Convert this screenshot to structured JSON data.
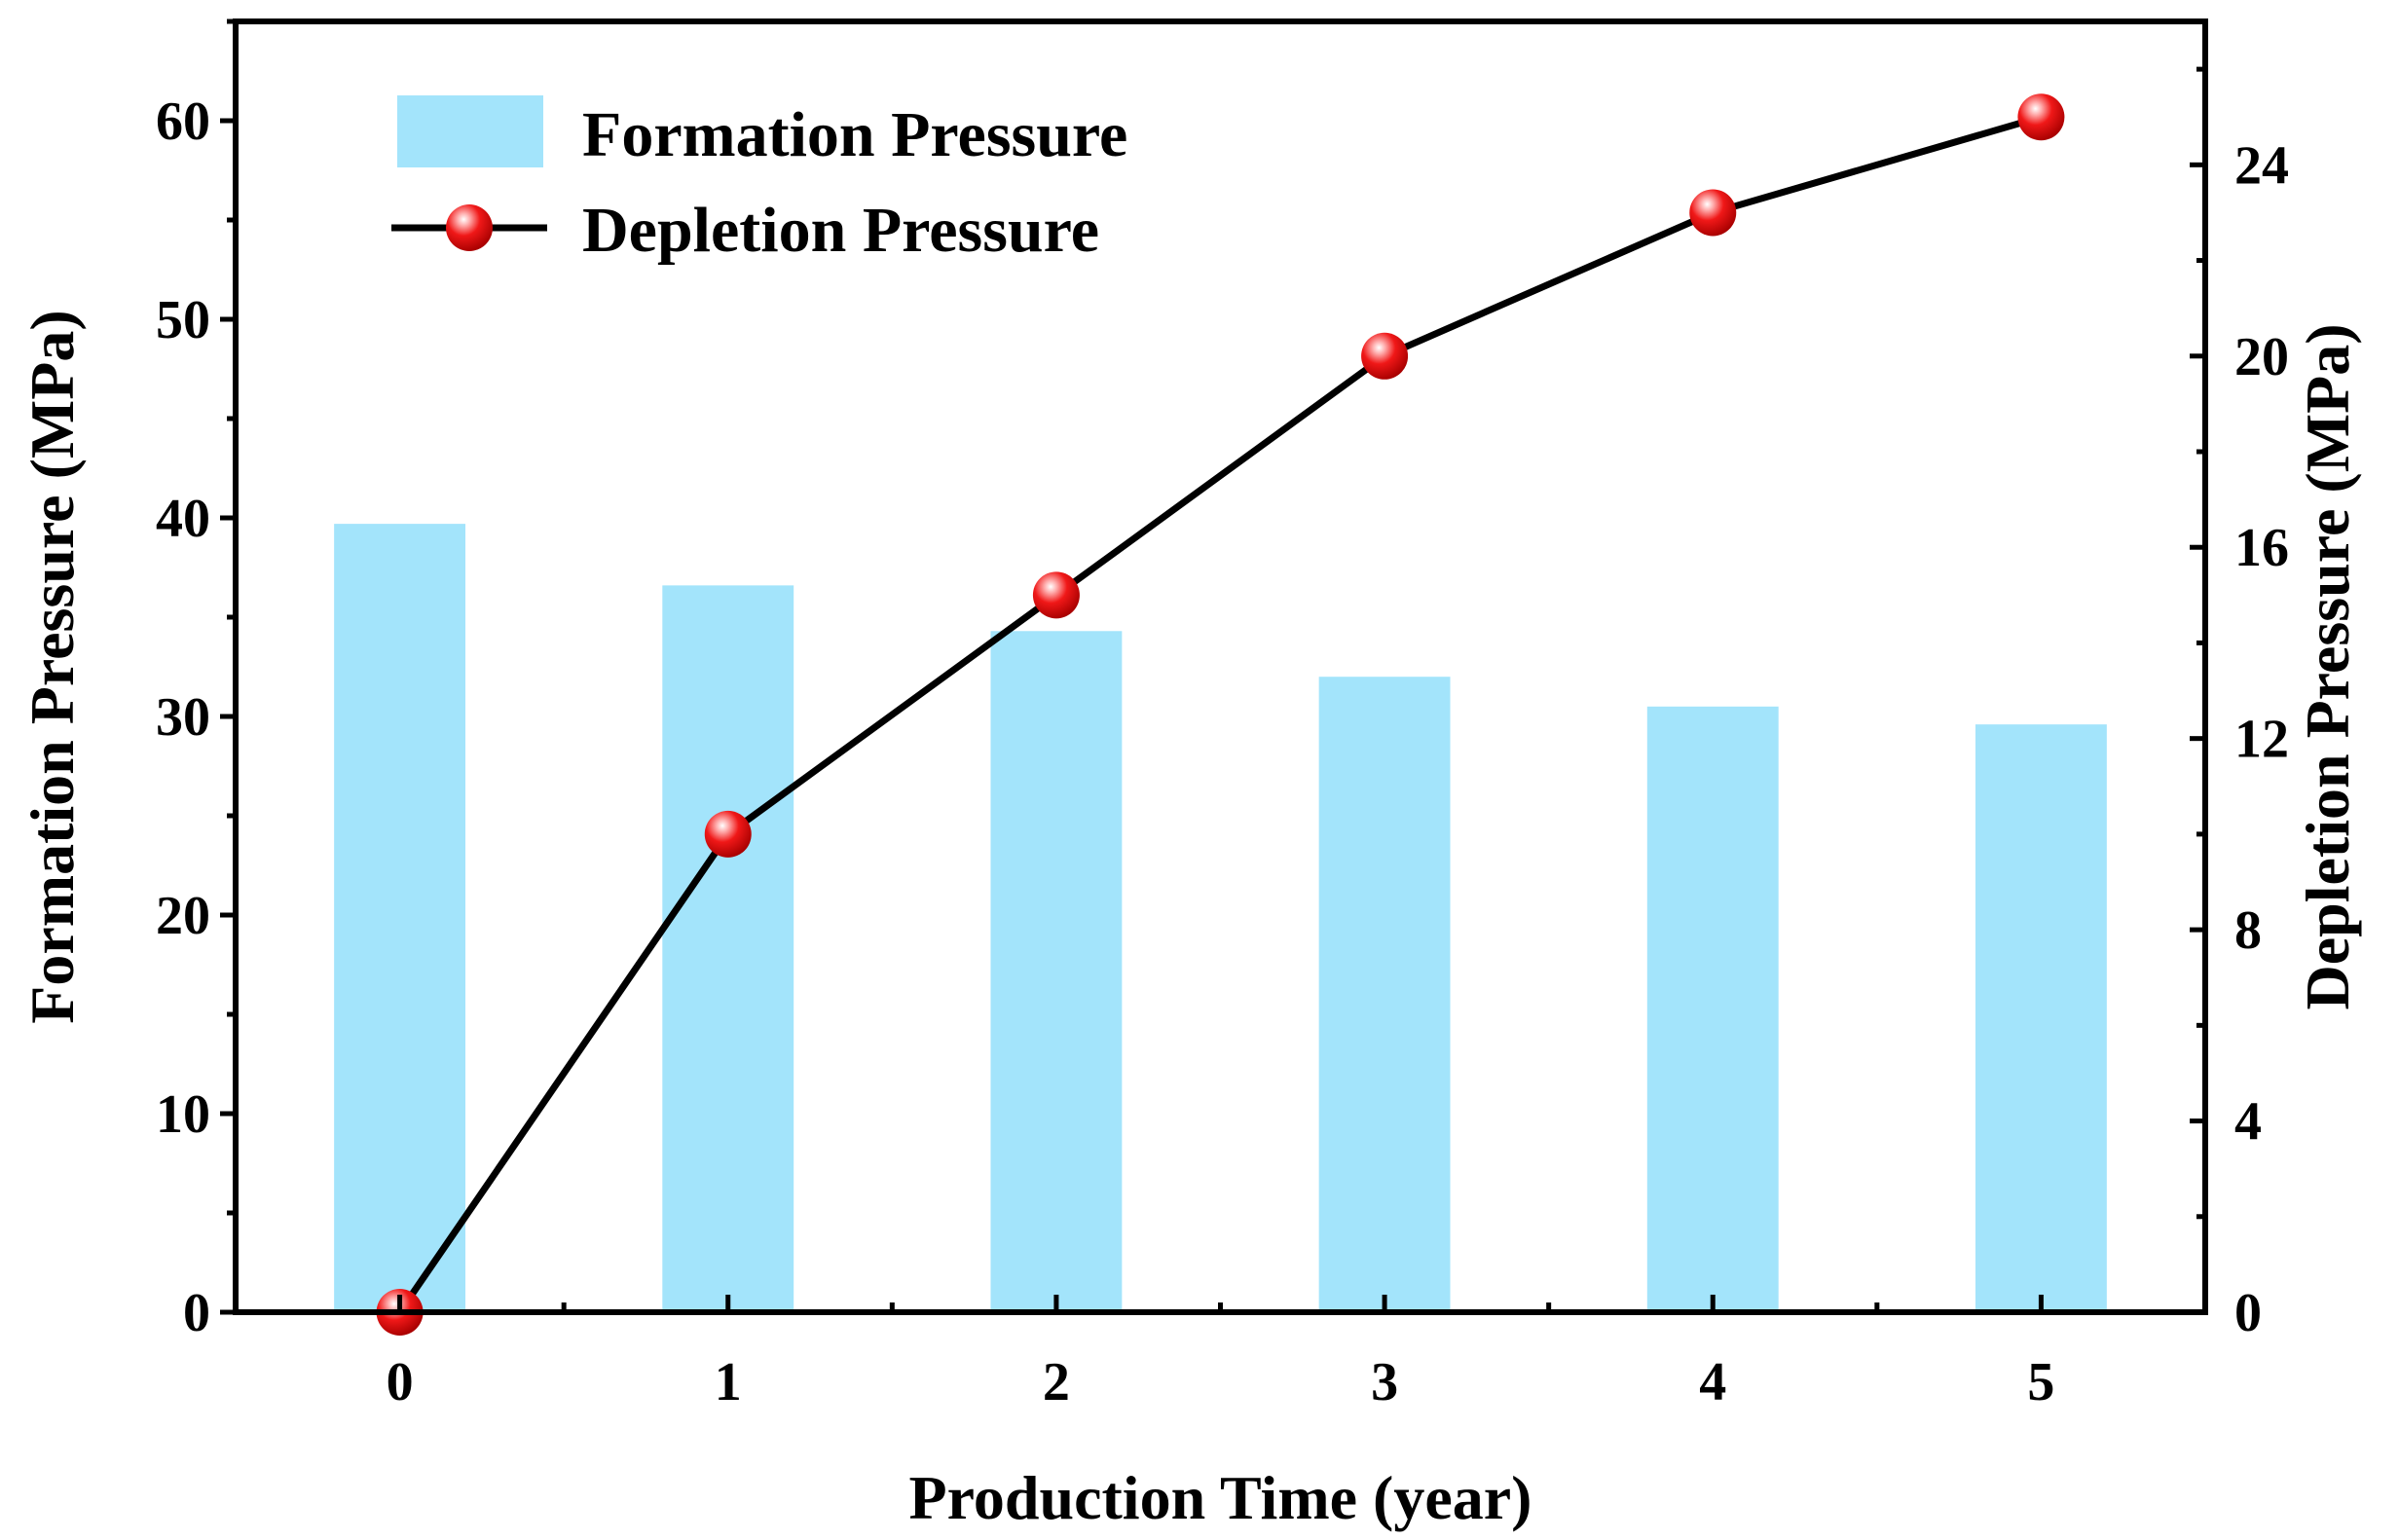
{
  "chart_data": {
    "type": "bar+line",
    "xlabel": "Production Time (year)",
    "ylabel_left": "Formation Pressure (MPa)",
    "ylabel_right": "Depletion Pressure (MPa)",
    "categories": [
      "0",
      "1",
      "2",
      "3",
      "4",
      "5"
    ],
    "ylim_left": [
      0,
      65
    ],
    "ylim_right": [
      0,
      27
    ],
    "yticks_left": [
      0,
      10,
      20,
      30,
      40,
      50,
      60
    ],
    "yticks_right": [
      0,
      4,
      8,
      12,
      16,
      20,
      24
    ],
    "series": [
      {
        "name": "Formation Pressure",
        "type": "bar",
        "axis": "left",
        "color": "#a3e4fb",
        "values": [
          39.7,
          36.6,
          34.3,
          32.0,
          30.5,
          29.6
        ]
      },
      {
        "name": "Depletion Pressure",
        "type": "line",
        "axis": "right",
        "color": "#000000",
        "marker_color": "#ee1111",
        "values": [
          0,
          10,
          15,
          20,
          23,
          25
        ]
      }
    ],
    "legend_position": "top-left",
    "grid": false
  }
}
